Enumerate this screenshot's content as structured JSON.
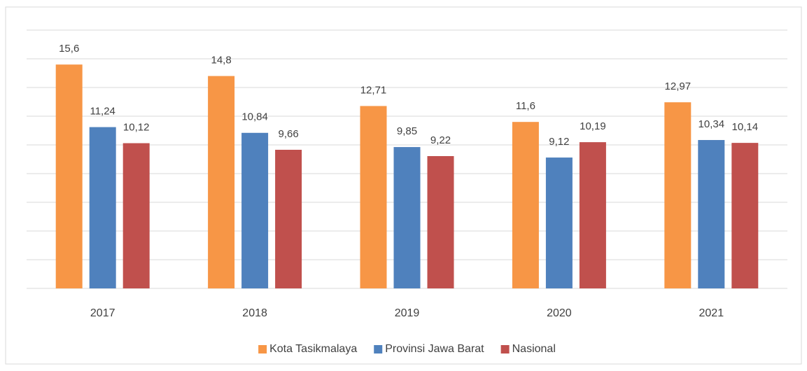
{
  "chart_data": {
    "type": "bar",
    "categories": [
      "2017",
      "2018",
      "2019",
      "2020",
      "2021"
    ],
    "series": [
      {
        "name": "Kota Tasikmalaya",
        "color": "#f79646",
        "values": [
          15.6,
          14.8,
          12.71,
          11.6,
          12.97
        ],
        "value_labels": [
          "15,6",
          "14,8",
          "12,71",
          "11,6",
          "12,97"
        ]
      },
      {
        "name": "Provinsi Jawa Barat",
        "color": "#4f81bd",
        "values": [
          11.24,
          10.84,
          9.85,
          9.12,
          10.34
        ],
        "value_labels": [
          "11,24",
          "10,84",
          "9,85",
          "9,12",
          "10,34"
        ]
      },
      {
        "name": "Nasional",
        "color": "#c0504d",
        "values": [
          10.12,
          9.66,
          9.22,
          10.19,
          10.14
        ],
        "value_labels": [
          "10,12",
          "9,66",
          "9,22",
          "10,19",
          "10,14"
        ]
      }
    ],
    "ylim": [
      0,
      18
    ],
    "yticks": [
      0,
      2,
      4,
      6,
      8,
      10,
      12,
      14,
      16,
      18
    ],
    "grid": true,
    "legend": "bottom"
  }
}
